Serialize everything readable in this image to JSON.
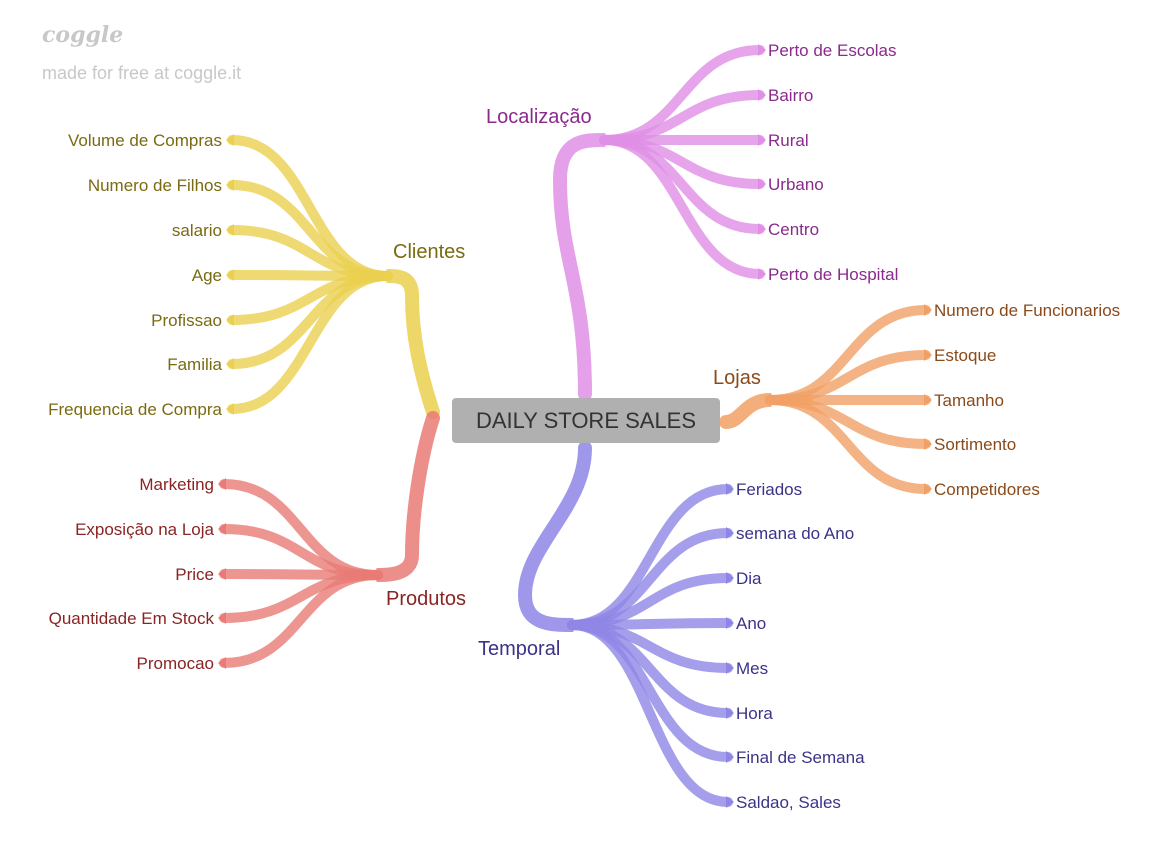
{
  "watermark": {
    "logo": "coggle",
    "text": "made for free at coggle.it"
  },
  "center": {
    "label": "DAILY STORE SALES"
  },
  "branches": {
    "clientes": {
      "label": "Clientes",
      "color": "#ebd04f",
      "text_color": "#7a6a10",
      "items": [
        "Volume de Compras",
        "Numero de Filhos",
        "salario",
        "Age",
        "Profissao",
        "Familia",
        "Frequencia de Compra"
      ]
    },
    "localizacao": {
      "label": "Localização",
      "color": "#e08fe6",
      "text_color": "#8a2a8c",
      "items": [
        "Perto de Escolas",
        "Bairro",
        "Rural",
        "Urbano",
        "Centro",
        "Perto de Hospital"
      ]
    },
    "lojas": {
      "label": "Lojas",
      "color": "#f1a065",
      "text_color": "#8a4a1a",
      "items": [
        "Numero de Funcionarios",
        "Estoque",
        "Tamanho",
        "Sortimento",
        "Competidores"
      ]
    },
    "produtos": {
      "label": "Produtos",
      "color": "#e97a76",
      "text_color": "#8a2424",
      "items": [
        "Marketing",
        "Exposição na Loja",
        "Price",
        "Quantidade Em Stock",
        "Promocao"
      ]
    },
    "temporal": {
      "label": "Temporal",
      "color": "#8e86e6",
      "text_color": "#3a3388",
      "items": [
        "Feriados",
        "semana do Ano",
        "Dia",
        "Ano",
        "Mes",
        "Hora",
        "Final de Semana",
        "Saldao, Sales"
      ]
    }
  }
}
